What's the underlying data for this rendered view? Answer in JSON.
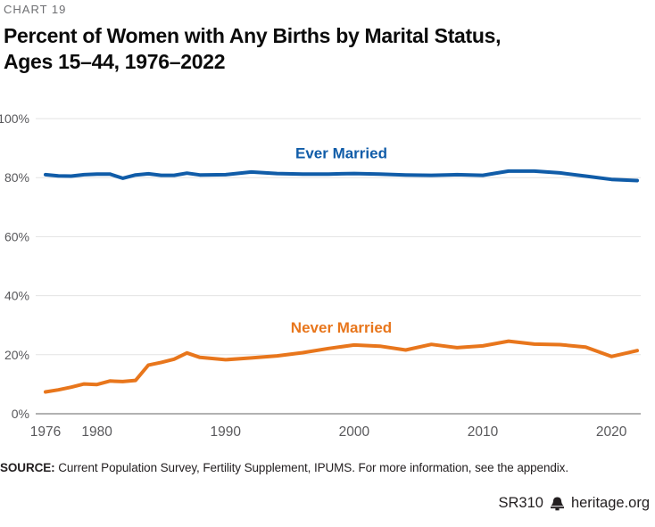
{
  "page": {
    "kicker": "CHART 19",
    "title_line1": "Percent of Women with Any Births by Marital Status,",
    "title_line2": "Ages 15–44, 1976–2022",
    "source_label": "SOURCE:",
    "source_text": " Current Population Survey, Fertility Supplement, IPUMS. For more information, see the appendix.",
    "footer": {
      "report_id": "SR310",
      "site": "heritage.org",
      "icon": "liberty-bell-icon"
    }
  },
  "colors": {
    "ever_married_blue": "#105CA8",
    "never_married_orange": "#E8761C",
    "grid": "#E3E3E3",
    "axis_line": "#999999",
    "tick_text": "#58585B",
    "kicker_text": "#6E6F72",
    "title_text": "#0B0B0B",
    "footer_text": "#231F20"
  },
  "chart_data": {
    "type": "line",
    "title": "Percent of Women with Any Births by Marital Status, Ages 15–44, 1976–2022",
    "xlabel": "",
    "ylabel": "",
    "grid": "horizontal",
    "legend_position": "inline-labels",
    "ylim": [
      0,
      100
    ],
    "yticks": [
      0,
      20,
      40,
      60,
      80,
      100
    ],
    "ytick_labels": [
      "0%",
      "20%",
      "40%",
      "60%",
      "80%",
      "100%"
    ],
    "xticks": [
      1976,
      1980,
      1990,
      2000,
      2010,
      2020
    ],
    "x": [
      1976,
      1977,
      1978,
      1979,
      1980,
      1981,
      1982,
      1983,
      1984,
      1985,
      1986,
      1987,
      1988,
      1990,
      1992,
      1994,
      1996,
      1998,
      2000,
      2002,
      2004,
      2006,
      2008,
      2010,
      2012,
      2014,
      2016,
      2018,
      2020,
      2022
    ],
    "series": [
      {
        "name": "Ever Married",
        "color": "#105CA8",
        "label_x": 1999,
        "label_y": 86.5,
        "values": [
          81.0,
          80.6,
          80.5,
          81.0,
          81.2,
          81.2,
          79.8,
          80.9,
          81.3,
          80.8,
          80.8,
          81.5,
          80.9,
          81.0,
          81.9,
          81.4,
          81.2,
          81.2,
          81.4,
          81.2,
          80.9,
          80.8,
          81.0,
          80.8,
          82.2,
          82.2,
          81.6,
          80.5,
          79.4,
          79.0
        ]
      },
      {
        "name": "Never Married",
        "color": "#E8761C",
        "label_x": 1999,
        "label_y": 27.5,
        "values": [
          7.4,
          8.1,
          9.0,
          10.1,
          9.9,
          11.1,
          10.9,
          11.3,
          16.5,
          17.4,
          18.5,
          20.6,
          19.1,
          18.3,
          18.9,
          19.6,
          20.7,
          22.1,
          23.3,
          22.9,
          21.6,
          23.5,
          22.4,
          23.0,
          24.6,
          23.6,
          23.4,
          22.6,
          19.4,
          21.4
        ]
      }
    ]
  }
}
